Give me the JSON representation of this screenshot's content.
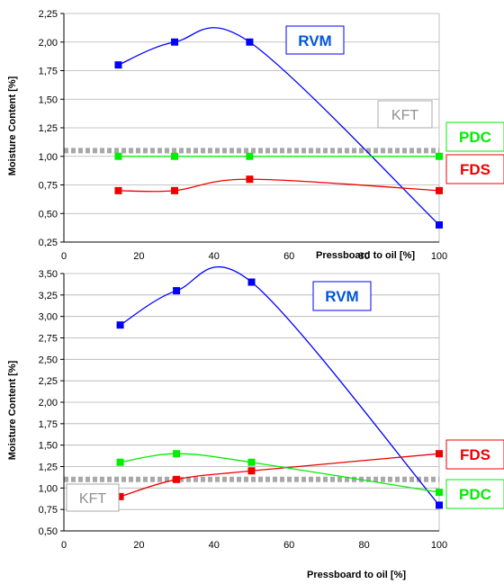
{
  "chart_data": [
    {
      "type": "line",
      "xlabel": "Pressboard to oil [%]",
      "ylabel": "Moisture Content [%]",
      "xlim": [
        0,
        100
      ],
      "ylim": [
        0.25,
        2.25
      ],
      "xticks": [
        0,
        20,
        40,
        60,
        80,
        100
      ],
      "xtick_labels": [
        "0",
        "20",
        "40",
        "60",
        "80",
        "100"
      ],
      "yticks": [
        0.25,
        0.5,
        0.75,
        1.0,
        1.25,
        1.5,
        1.75,
        2.0,
        2.25
      ],
      "ytick_labels": [
        "0,25",
        "0,50",
        "0,75",
        "1,00",
        "1,25",
        "1,50",
        "1,75",
        "2,00",
        "2,25"
      ],
      "grid": "horizontal",
      "series": [
        {
          "name": "RVM",
          "color": "#0000ff",
          "label_color": "#0055dd",
          "x": [
            14.5,
            29.5,
            49.5,
            100
          ],
          "y": [
            1.8,
            2.0,
            2.0,
            0.4
          ]
        },
        {
          "name": "PDC",
          "color": "#00ee00",
          "label_color": "#00ee00",
          "x": [
            14.5,
            29.5,
            49.5,
            100
          ],
          "y": [
            1.0,
            1.0,
            1.0,
            1.0
          ]
        },
        {
          "name": "FDS",
          "color": "#ee0000",
          "label_color": "#ee0000",
          "x": [
            14.5,
            29.5,
            49.5,
            100
          ],
          "y": [
            0.7,
            0.7,
            0.8,
            0.7
          ]
        }
      ],
      "reference_line": {
        "name": "KFT",
        "y": 1.05,
        "color": "#a8a8a8"
      }
    },
    {
      "type": "line",
      "xlabel": "Pressboard to oil [%]",
      "ylabel": "Moisture Content [%]",
      "xlim": [
        0,
        100
      ],
      "ylim": [
        0.5,
        3.5
      ],
      "xticks": [
        0,
        20,
        40,
        60,
        80,
        100
      ],
      "xtick_labels": [
        "0",
        "20",
        "40",
        "60",
        "80",
        "100"
      ],
      "yticks": [
        0.5,
        0.75,
        1.0,
        1.25,
        1.5,
        1.75,
        2.0,
        2.25,
        2.5,
        2.75,
        3.0,
        3.25,
        3.5
      ],
      "ytick_labels": [
        "0,50",
        "0,75",
        "1,00",
        "1,25",
        "1,50",
        "1,75",
        "2,00",
        "2,25",
        "2,50",
        "2,75",
        "3,00",
        "3,25",
        "3,50"
      ],
      "grid": "horizontal",
      "series": [
        {
          "name": "RVM",
          "color": "#0000ff",
          "label_color": "#0055dd",
          "x": [
            15,
            30,
            50,
            100
          ],
          "y": [
            2.9,
            3.3,
            3.4,
            0.8
          ]
        },
        {
          "name": "FDS",
          "color": "#ee0000",
          "label_color": "#ee0000",
          "x": [
            15,
            30,
            50,
            100
          ],
          "y": [
            0.9,
            1.1,
            1.2,
            1.4
          ]
        },
        {
          "name": "PDC",
          "color": "#00ee00",
          "label_color": "#00ee00",
          "x": [
            15,
            30,
            50,
            100
          ],
          "y": [
            1.3,
            1.4,
            1.3,
            0.95
          ]
        }
      ],
      "reference_line": {
        "name": "KFT",
        "y": 1.1,
        "color": "#a8a8a8"
      }
    }
  ]
}
